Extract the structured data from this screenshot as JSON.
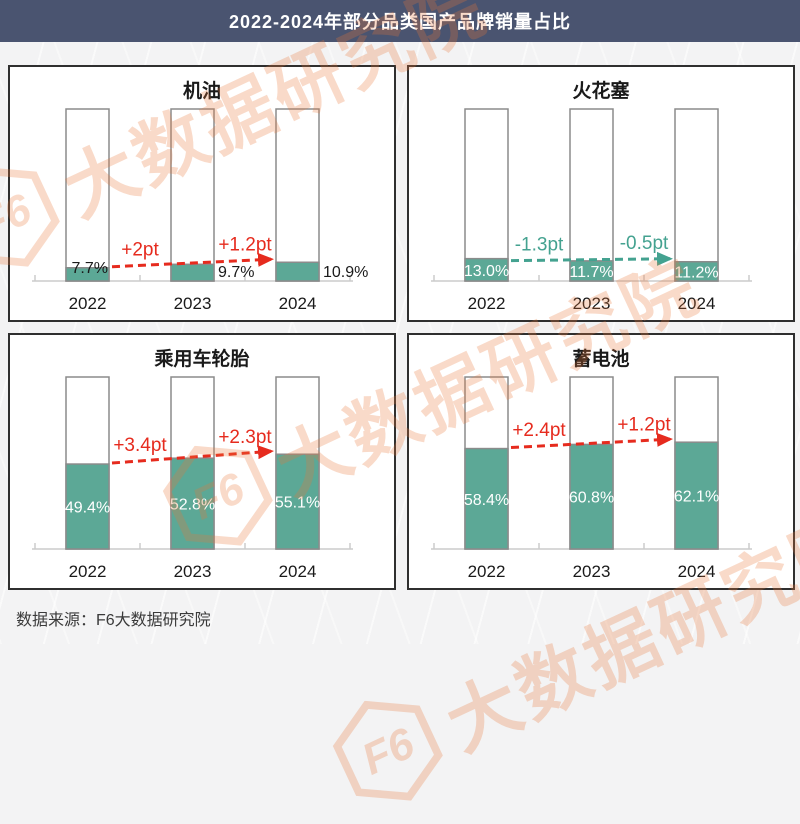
{
  "header": {
    "title": "2022-2024年部分品类国产品牌销量占比"
  },
  "footer": {
    "source_label": "数据来源：F6大数据研究院"
  },
  "watermark": {
    "logo_text": "F6",
    "text": "大数据研究院"
  },
  "colors": {
    "header_bg": "#4a5470",
    "bar_fill": "#5ca896",
    "bar_outline": "#8b8b8b",
    "axis": "#cccccc",
    "increase": "#e62b1e",
    "decrease": "#44a290",
    "label_dark": "#1a1a1a",
    "label_light": "#ffffff"
  },
  "chart_data": [
    {
      "type": "bar",
      "title": "机油",
      "categories": [
        "2022",
        "2023",
        "2024"
      ],
      "values": [
        7.7,
        9.7,
        10.9
      ],
      "value_labels": [
        "7.7%",
        "9.7%",
        "10.9%"
      ],
      "changes": [
        "+2pt",
        "+1.2pt"
      ],
      "trend": "up",
      "unit": "%",
      "ylim": [
        0,
        100
      ],
      "grid": false,
      "label_style": "outside-black"
    },
    {
      "type": "bar",
      "title": "火花塞",
      "categories": [
        "2022",
        "2023",
        "2024"
      ],
      "values": [
        13.0,
        11.7,
        11.2
      ],
      "value_labels": [
        "13.0%",
        "11.7%",
        "11.2%"
      ],
      "changes": [
        "-1.3pt",
        "-0.5pt"
      ],
      "trend": "down",
      "unit": "%",
      "ylim": [
        0,
        100
      ],
      "grid": false,
      "label_style": "inside-white"
    },
    {
      "type": "bar",
      "title": "乘用车轮胎",
      "categories": [
        "2022",
        "2023",
        "2024"
      ],
      "values": [
        49.4,
        52.8,
        55.1
      ],
      "value_labels": [
        "49.4%",
        "52.8%",
        "55.1%"
      ],
      "changes": [
        "+3.4pt",
        "+2.3pt"
      ],
      "trend": "up",
      "unit": "%",
      "ylim": [
        0,
        100
      ],
      "grid": false,
      "label_style": "inside-white"
    },
    {
      "type": "bar",
      "title": "蓄电池",
      "categories": [
        "2022",
        "2023",
        "2024"
      ],
      "values": [
        58.4,
        60.8,
        62.1
      ],
      "value_labels": [
        "58.4%",
        "60.8%",
        "62.1%"
      ],
      "changes": [
        "+2.4pt",
        "+1.2pt"
      ],
      "trend": "up",
      "unit": "%",
      "ylim": [
        0,
        100
      ],
      "grid": false,
      "label_style": "inside-white"
    }
  ]
}
